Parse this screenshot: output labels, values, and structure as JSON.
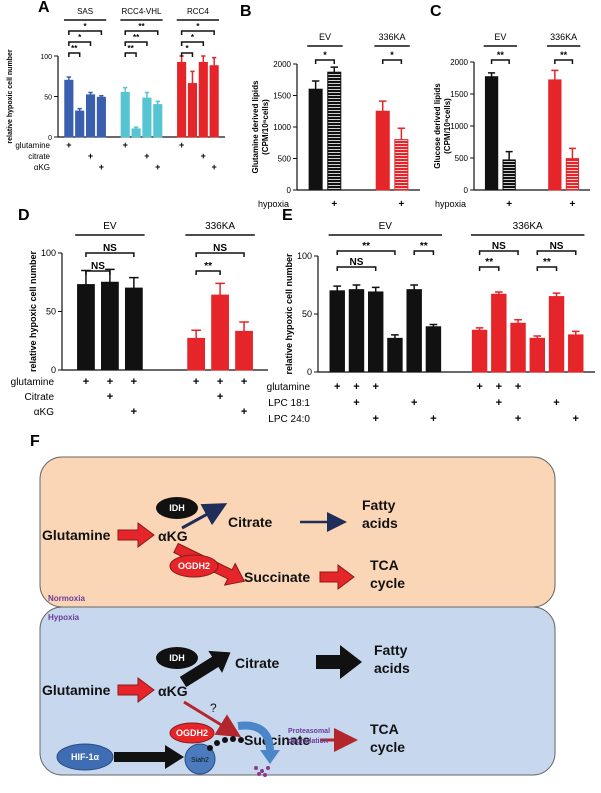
{
  "chart_data": [
    {
      "type": "bar",
      "panel": "A",
      "ylabel": [
        "relative hypoxic cell number"
      ],
      "ylim": [
        0,
        100
      ],
      "yticks": [
        0,
        50,
        100
      ],
      "series": [
        {
          "name": "SAS",
          "color": "#3a5fae",
          "values": [
            70,
            32,
            52,
            49
          ],
          "errors": [
            4,
            3,
            3,
            2
          ]
        },
        {
          "name": "RCC4-VHL",
          "color": "#56c4d2",
          "values": [
            55,
            10,
            48,
            40
          ],
          "errors": [
            6,
            2,
            7,
            4
          ]
        },
        {
          "name": "RCC4",
          "color": "#e52529",
          "values": [
            92,
            66,
            92,
            88
          ],
          "errors": [
            8,
            15,
            8,
            10
          ]
        }
      ],
      "brackets": [
        {
          "series": 0,
          "from": 0,
          "to": 3,
          "text": "*"
        },
        {
          "series": 0,
          "from": 0,
          "to": 2,
          "text": "*"
        },
        {
          "series": 0,
          "from": 0,
          "to": 1,
          "text": "**"
        },
        {
          "series": 1,
          "from": 0,
          "to": 3,
          "text": "**"
        },
        {
          "series": 1,
          "from": 0,
          "to": 2,
          "text": "**"
        },
        {
          "series": 1,
          "from": 0,
          "to": 1,
          "text": "**"
        },
        {
          "series": 2,
          "from": 0,
          "to": 3,
          "text": "*"
        },
        {
          "series": 2,
          "from": 0,
          "to": 2,
          "text": "*"
        },
        {
          "series": 2,
          "from": 0,
          "to": 1,
          "text": "*"
        }
      ],
      "rows": [
        {
          "name": "glutamine",
          "marks": [
            "+",
            null,
            null,
            null,
            "+",
            null,
            null,
            null,
            "+",
            null,
            null,
            null
          ]
        },
        {
          "name": "citrate",
          "marks": [
            null,
            null,
            "+",
            null,
            null,
            null,
            "+",
            null,
            null,
            null,
            "+",
            null
          ]
        },
        {
          "name": "αKG",
          "marks": [
            null,
            null,
            null,
            "+",
            null,
            null,
            null,
            "+",
            null,
            null,
            null,
            "+"
          ]
        }
      ]
    },
    {
      "type": "bar",
      "panel": "B",
      "ylabel": [
        "Glutamine derived lipids",
        "(CPM/10⁶cells)"
      ],
      "ylim": [
        0,
        2000
      ],
      "yticks": [
        0,
        500,
        1000,
        1500,
        2000
      ],
      "series": [
        {
          "name": "EV",
          "color": "#111111",
          "values": [
            1600,
            1870
          ],
          "errors": [
            130,
            80
          ],
          "hatch": [
            false,
            true
          ]
        },
        {
          "name": "336KA",
          "color": "#e52529",
          "values": [
            1250,
            800
          ],
          "errors": [
            160,
            180
          ],
          "hatch": [
            false,
            true
          ]
        }
      ],
      "brackets": [
        {
          "series": 0,
          "from": 0,
          "to": 1,
          "text": "*"
        },
        {
          "series": 1,
          "from": 0,
          "to": 1,
          "text": "*"
        }
      ],
      "rows": [
        {
          "name": "hypoxia",
          "marks": [
            null,
            "+",
            null,
            "+"
          ]
        }
      ]
    },
    {
      "type": "bar",
      "panel": "C",
      "ylabel": [
        "Glucose derived lipids",
        "(CPM/10⁶cells)"
      ],
      "ylim": [
        0,
        2000
      ],
      "yticks": [
        0,
        500,
        1000,
        1500,
        2000
      ],
      "series": [
        {
          "name": "EV",
          "color": "#111111",
          "values": [
            1770,
            470
          ],
          "errors": [
            60,
            130
          ],
          "hatch": [
            false,
            true
          ]
        },
        {
          "name": "336KA",
          "color": "#e52529",
          "values": [
            1720,
            490
          ],
          "errors": [
            150,
            160
          ],
          "hatch": [
            false,
            true
          ]
        }
      ],
      "brackets": [
        {
          "series": 0,
          "from": 0,
          "to": 1,
          "text": "**"
        },
        {
          "series": 1,
          "from": 0,
          "to": 1,
          "text": "**"
        }
      ],
      "rows": [
        {
          "name": "hypoxia",
          "marks": [
            null,
            "+",
            null,
            "+"
          ]
        }
      ]
    },
    {
      "type": "bar",
      "panel": "D",
      "ylabel": [
        "relative hypoxic cell number"
      ],
      "ylim": [
        0,
        100
      ],
      "yticks": [
        0,
        50,
        100
      ],
      "series": [
        {
          "name": "EV",
          "color": "#111111",
          "values": [
            73,
            75,
            70
          ],
          "errors": [
            12,
            11,
            9
          ]
        },
        {
          "name": "336KA",
          "color": "#e52529",
          "values": [
            27,
            64,
            33
          ],
          "errors": [
            7,
            10,
            8
          ]
        }
      ],
      "brackets": [
        {
          "series": 0,
          "from": 0,
          "to": 2,
          "text": "NS"
        },
        {
          "series": 0,
          "from": 0,
          "to": 1,
          "text": "NS"
        },
        {
          "series": 1,
          "from": 0,
          "to": 2,
          "text": "NS"
        },
        {
          "series": 1,
          "from": 0,
          "to": 1,
          "text": "**"
        }
      ],
      "rows": [
        {
          "name": "glutamine",
          "marks": [
            "+",
            "+",
            "+",
            "+",
            "+",
            "+"
          ]
        },
        {
          "name": "Citrate",
          "marks": [
            null,
            "+",
            null,
            null,
            "+",
            null
          ]
        },
        {
          "name": "αKG",
          "marks": [
            null,
            null,
            "+",
            null,
            null,
            "+"
          ]
        }
      ]
    },
    {
      "type": "bar",
      "panel": "E",
      "ylabel": [
        "relative hypoxic cell number"
      ],
      "ylim": [
        0,
        100
      ],
      "yticks": [
        0,
        50,
        100
      ],
      "series": [
        {
          "name": "EV",
          "color": "#111111",
          "values": [
            70,
            71,
            69,
            29,
            71,
            39
          ],
          "errors": [
            4,
            4,
            4,
            3,
            4,
            2
          ]
        },
        {
          "name": "336KA",
          "color": "#e52529",
          "values": [
            36,
            67,
            42,
            29,
            65,
            32
          ],
          "errors": [
            2,
            2,
            3,
            2,
            3,
            3
          ]
        }
      ],
      "brackets": [
        {
          "series": 0,
          "from": 0,
          "to": 3,
          "text": "**"
        },
        {
          "series": 0,
          "from": 0,
          "to": 2,
          "text": "NS"
        },
        {
          "series": 0,
          "from": 4,
          "to": 5,
          "text": "**"
        },
        {
          "series": 1,
          "from": 0,
          "to": 2,
          "text": "NS"
        },
        {
          "series": 1,
          "from": 0,
          "to": 1,
          "text": "**"
        },
        {
          "series": 1,
          "from": 3,
          "to": 5,
          "text": "NS"
        },
        {
          "series": 1,
          "from": 3,
          "to": 4,
          "text": "**"
        }
      ],
      "rows": [
        {
          "name": "glutamine",
          "marks": [
            "+",
            "+",
            "+",
            null,
            null,
            null,
            "+",
            "+",
            "+",
            null,
            null,
            null
          ]
        },
        {
          "name": "LPC 18:1",
          "marks": [
            null,
            "+",
            null,
            null,
            "+",
            null,
            null,
            "+",
            null,
            null,
            "+",
            null
          ]
        },
        {
          "name": "LPC 24:0",
          "marks": [
            null,
            null,
            "+",
            null,
            null,
            "+",
            null,
            null,
            "+",
            null,
            null,
            "+"
          ]
        }
      ]
    }
  ],
  "diagram": {
    "panel": "F",
    "normoxia": {
      "label": "Normoxia",
      "glutamine": "Glutamine",
      "akg": "αKG",
      "idh": "IDH",
      "citrate": "Citrate",
      "fatty_acids": [
        "Fatty",
        "acids"
      ],
      "ogdh2": "OGDH2",
      "succinate": "Succinate",
      "tca": [
        "TCA",
        "cycle"
      ]
    },
    "hypoxia": {
      "label": "Hypoxia",
      "glutamine": "Glutamine",
      "akg": "αKG",
      "idh": "IDH",
      "citrate": "Citrate",
      "fatty_acids": [
        "Fatty",
        "acids"
      ],
      "question": "?",
      "succinate": "Succinate",
      "tca": [
        "TCA",
        "cycle"
      ],
      "ogdh2": "OGDH2",
      "hif": "HIF-1α",
      "siah2": "Siah2",
      "proteasomal": [
        "Proteasomal",
        "degradation"
      ]
    }
  }
}
